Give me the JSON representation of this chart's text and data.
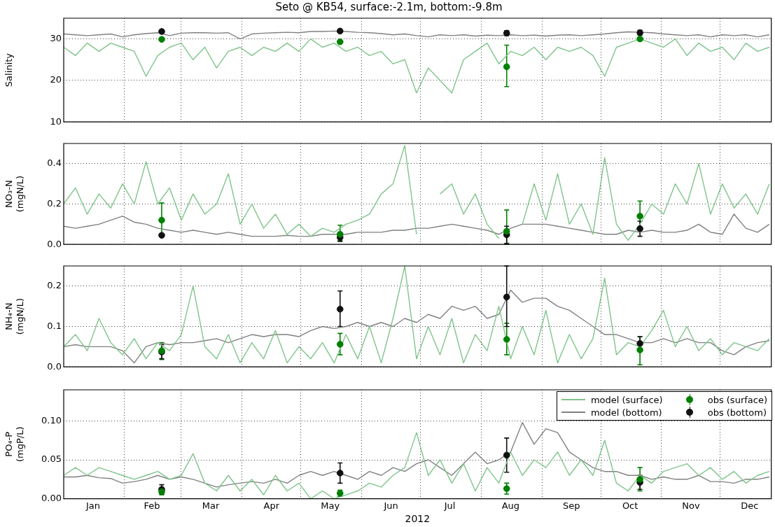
{
  "chart_data": [
    {
      "type": "line",
      "title": "Seto @ KB54, surface:-2.1m, bottom:-9.8m",
      "ylabel": "Salinity",
      "tick_labels": "y",
      "grid": true,
      "line_style": "solid",
      "xlim": [
        "2012-01-01",
        "2012-12-27"
      ],
      "ylim": [
        10,
        35
      ],
      "yticks": [
        10,
        20,
        30
      ],
      "xticks": [
        {
          "value": "2012-02-01",
          "label": null
        },
        {
          "value": "2012-03-01",
          "label": null
        },
        {
          "value": "2012-04-01",
          "label": null
        },
        {
          "value": "2012-05-01",
          "label": null
        },
        {
          "value": "2012-06-01",
          "label": null
        },
        {
          "value": "2012-07-01",
          "label": null
        },
        {
          "value": "2012-08-01",
          "label": null
        },
        {
          "value": "2012-09-01",
          "label": null
        },
        {
          "value": "2012-10-01",
          "label": null
        },
        {
          "value": "2012-11-01",
          "label": null
        },
        {
          "value": "2012-12-01",
          "label": null
        }
      ],
      "x": [
        "2012-01-01",
        "2012-01-07",
        "2012-01-13",
        "2012-01-19",
        "2012-01-25",
        "2012-01-31",
        "2012-02-06",
        "2012-02-12",
        "2012-02-18",
        "2012-02-24",
        "2012-03-01",
        "2012-03-07",
        "2012-03-13",
        "2012-03-19",
        "2012-03-25",
        "2012-03-31",
        "2012-04-06",
        "2012-04-12",
        "2012-04-18",
        "2012-04-24",
        "2012-04-30",
        "2012-05-06",
        "2012-05-12",
        "2012-05-18",
        "2012-05-24",
        "2012-05-30",
        "2012-06-05",
        "2012-06-11",
        "2012-06-17",
        "2012-06-23",
        "2012-06-29",
        "2012-07-05",
        "2012-07-11",
        "2012-07-17",
        "2012-07-23",
        "2012-07-29",
        "2012-08-04",
        "2012-08-10",
        "2012-08-16",
        "2012-08-22",
        "2012-08-28",
        "2012-09-03",
        "2012-09-09",
        "2012-09-15",
        "2012-09-21",
        "2012-09-27",
        "2012-10-03",
        "2012-10-09",
        "2012-10-15",
        "2012-10-21",
        "2012-10-27",
        "2012-11-02",
        "2012-11-08",
        "2012-11-14",
        "2012-11-20",
        "2012-11-26",
        "2012-12-02",
        "2012-12-08",
        "2012-12-14",
        "2012-12-20",
        "2012-12-26"
      ],
      "series": [
        {
          "color": "#7fc48a",
          "values": [
            28,
            26,
            29,
            27,
            29,
            28,
            27,
            21,
            26,
            28,
            29,
            25,
            28,
            23,
            27,
            28,
            26,
            28,
            27,
            29,
            27,
            30,
            28,
            29,
            27,
            28,
            26,
            27,
            24,
            25,
            17,
            23,
            20,
            17,
            25,
            27,
            29,
            24,
            27,
            26,
            28,
            25,
            28,
            27,
            28,
            26,
            21,
            28,
            29,
            30,
            29,
            28,
            30,
            26,
            29,
            27,
            28,
            25,
            29,
            27,
            28
          ]
        },
        {
          "color": "#808080",
          "values": [
            31.2,
            31,
            30.8,
            31,
            31.2,
            30.5,
            31,
            31.3,
            31.5,
            30.8,
            31.4,
            31.5,
            31.5,
            31.4,
            31.5,
            30,
            31.2,
            31.4,
            31.5,
            31.6,
            31.5,
            31.8,
            31.8,
            31.9,
            31.8,
            31.6,
            31.5,
            31.3,
            31,
            31.2,
            30.8,
            30.5,
            31,
            30.8,
            31,
            30.7,
            30.9,
            30.8,
            31,
            30.8,
            30.9,
            30.7,
            30.9,
            31,
            30.8,
            31,
            31.2,
            31.5,
            31.7,
            31.6,
            31.5,
            31.2,
            31,
            30.8,
            31,
            30.5,
            31,
            30.8,
            31,
            30.5,
            31
          ]
        },
        {
          "type": "scatter",
          "marker": "circle",
          "color": "#008000",
          "x": [
            "2012-02-20",
            "2012-05-21",
            "2012-08-14",
            "2012-10-21"
          ],
          "values": [
            29.9,
            29.3,
            23.3,
            30
          ],
          "errors": [
            null,
            null,
            [
              18.5,
              28.5
            ],
            null
          ]
        },
        {
          "type": "scatter",
          "marker": "circle",
          "color": "#111111",
          "x": [
            "2012-02-20",
            "2012-05-21",
            "2012-08-14",
            "2012-10-21"
          ],
          "values": [
            31.8,
            31.9,
            31.4,
            31.5
          ],
          "errors": [
            null,
            null,
            [
              30.8,
              32
            ],
            [
              30.9,
              32.1
            ]
          ]
        }
      ]
    },
    {
      "type": "line",
      "ylabel": "NO₃-N\n(mgN/L)",
      "tick_labels": "y",
      "grid": true,
      "line_style": "solid",
      "xlim": [
        "2012-01-01",
        "2012-12-27"
      ],
      "ylim": [
        0,
        0.5
      ],
      "yticks": [
        {
          "value": 0,
          "label": "0.0"
        },
        {
          "value": 0.2,
          "label": "0.2"
        },
        {
          "value": 0.4,
          "label": "0.4"
        }
      ],
      "xticks": [
        {
          "value": "2012-02-01",
          "label": null
        },
        {
          "value": "2012-03-01",
          "label": null
        },
        {
          "value": "2012-04-01",
          "label": null
        },
        {
          "value": "2012-05-01",
          "label": null
        },
        {
          "value": "2012-06-01",
          "label": null
        },
        {
          "value": "2012-07-01",
          "label": null
        },
        {
          "value": "2012-08-01",
          "label": null
        },
        {
          "value": "2012-09-01",
          "label": null
        },
        {
          "value": "2012-10-01",
          "label": null
        },
        {
          "value": "2012-11-01",
          "label": null
        },
        {
          "value": "2012-12-01",
          "label": null
        }
      ],
      "x": [
        "2012-01-01",
        "2012-01-07",
        "2012-01-13",
        "2012-01-19",
        "2012-01-25",
        "2012-01-31",
        "2012-02-06",
        "2012-02-12",
        "2012-02-18",
        "2012-02-24",
        "2012-03-01",
        "2012-03-07",
        "2012-03-13",
        "2012-03-19",
        "2012-03-25",
        "2012-03-31",
        "2012-04-06",
        "2012-04-12",
        "2012-04-18",
        "2012-04-24",
        "2012-04-30",
        "2012-05-06",
        "2012-05-12",
        "2012-05-18",
        "2012-05-24",
        "2012-05-30",
        "2012-06-05",
        "2012-06-11",
        "2012-06-17",
        "2012-06-23",
        "2012-06-29",
        "2012-07-05",
        "2012-07-11",
        "2012-07-17",
        "2012-07-23",
        "2012-07-29",
        "2012-08-04",
        "2012-08-10",
        "2012-08-16",
        "2012-08-22",
        "2012-08-28",
        "2012-09-03",
        "2012-09-09",
        "2012-09-15",
        "2012-09-21",
        "2012-09-27",
        "2012-10-03",
        "2012-10-09",
        "2012-10-15",
        "2012-10-21",
        "2012-10-27",
        "2012-11-02",
        "2012-11-08",
        "2012-11-14",
        "2012-11-20",
        "2012-11-26",
        "2012-12-02",
        "2012-12-08",
        "2012-12-14",
        "2012-12-20",
        "2012-12-26"
      ],
      "series": [
        {
          "color": "#7fc48a",
          "values": [
            0.2,
            0.28,
            0.15,
            0.25,
            0.18,
            0.3,
            0.2,
            0.41,
            0.2,
            0.28,
            0.12,
            0.25,
            0.15,
            0.2,
            0.35,
            0.1,
            0.2,
            0.08,
            0.15,
            0.05,
            0.1,
            0.04,
            0.08,
            0.06,
            0.1,
            0.12,
            0.15,
            0.25,
            0.3,
            0.49,
            0.05,
            null,
            0.25,
            0.3,
            0.15,
            0.25,
            0.1,
            0.03,
            null,
            0.1,
            0.3,
            0.12,
            0.35,
            0.1,
            0.2,
            0.05,
            0.43,
            0.1,
            0.02,
            0.1,
            0.2,
            0.15,
            0.3,
            0.2,
            0.4,
            0.15,
            0.3,
            0.18,
            0.25,
            0.15,
            0.3
          ]
        },
        {
          "color": "#808080",
          "values": [
            0.09,
            0.08,
            0.09,
            0.1,
            0.12,
            0.14,
            0.11,
            0.1,
            0.08,
            0.07,
            0.06,
            0.07,
            0.06,
            0.05,
            0.06,
            0.05,
            0.04,
            0.04,
            0.04,
            0.045,
            0.04,
            0.04,
            0.05,
            0.05,
            0.05,
            0.06,
            0.06,
            0.06,
            0.07,
            0.07,
            0.08,
            0.08,
            0.09,
            0.1,
            0.09,
            0.08,
            0.07,
            0.05,
            0.08,
            0.1,
            0.1,
            0.1,
            0.09,
            0.08,
            0.07,
            0.06,
            0.05,
            0.05,
            0.07,
            0.06,
            0.07,
            0.06,
            0.06,
            0.07,
            0.1,
            0.06,
            0.05,
            0.15,
            0.08,
            0.06,
            0.1
          ]
        },
        {
          "type": "scatter",
          "marker": "circle",
          "color": "#008000",
          "x": [
            "2012-02-20",
            "2012-05-21",
            "2012-08-14",
            "2012-10-21"
          ],
          "values": [
            0.12,
            0.05,
            0.065,
            0.14
          ],
          "errors": [
            [
              0.04,
              0.205
            ],
            [
              0.02,
              0.095
            ],
            [
              0,
              0.17
            ],
            [
              0.07,
              0.215
            ]
          ]
        },
        {
          "type": "scatter",
          "marker": "circle",
          "color": "#111111",
          "x": [
            "2012-02-20",
            "2012-05-21",
            "2012-08-14",
            "2012-10-21"
          ],
          "values": [
            0.045,
            0.035,
            0.048,
            0.078
          ],
          "errors": [
            null,
            [
              0.015,
              0.06
            ],
            [
              0.005,
              0.09
            ],
            [
              0.04,
              0.115
            ]
          ]
        }
      ]
    },
    {
      "type": "line",
      "ylabel": "NH₄-N\n(mgN/L)",
      "tick_labels": "y",
      "grid": true,
      "line_style": "solid",
      "xlim": [
        "2012-01-01",
        "2012-12-27"
      ],
      "ylim": [
        0,
        0.25
      ],
      "yticks": [
        {
          "value": 0,
          "label": "0.0"
        },
        {
          "value": 0.1,
          "label": "0.1"
        },
        {
          "value": 0.2,
          "label": "0.2"
        }
      ],
      "xticks": [
        {
          "value": "2012-02-01",
          "label": null
        },
        {
          "value": "2012-03-01",
          "label": null
        },
        {
          "value": "2012-04-01",
          "label": null
        },
        {
          "value": "2012-05-01",
          "label": null
        },
        {
          "value": "2012-06-01",
          "label": null
        },
        {
          "value": "2012-07-01",
          "label": null
        },
        {
          "value": "2012-08-01",
          "label": null
        },
        {
          "value": "2012-09-01",
          "label": null
        },
        {
          "value": "2012-10-01",
          "label": null
        },
        {
          "value": "2012-11-01",
          "label": null
        },
        {
          "value": "2012-12-01",
          "label": null
        }
      ],
      "x": [
        "2012-01-01",
        "2012-01-07",
        "2012-01-13",
        "2012-01-19",
        "2012-01-25",
        "2012-01-31",
        "2012-02-06",
        "2012-02-12",
        "2012-02-18",
        "2012-02-24",
        "2012-03-01",
        "2012-03-07",
        "2012-03-13",
        "2012-03-19",
        "2012-03-25",
        "2012-03-31",
        "2012-04-06",
        "2012-04-12",
        "2012-04-18",
        "2012-04-24",
        "2012-04-30",
        "2012-05-06",
        "2012-05-12",
        "2012-05-18",
        "2012-05-24",
        "2012-05-30",
        "2012-06-05",
        "2012-06-11",
        "2012-06-17",
        "2012-06-23",
        "2012-06-29",
        "2012-07-05",
        "2012-07-11",
        "2012-07-17",
        "2012-07-23",
        "2012-07-29",
        "2012-08-04",
        "2012-08-10",
        "2012-08-16",
        "2012-08-22",
        "2012-08-28",
        "2012-09-03",
        "2012-09-09",
        "2012-09-15",
        "2012-09-21",
        "2012-09-27",
        "2012-10-03",
        "2012-10-09",
        "2012-10-15",
        "2012-10-21",
        "2012-10-27",
        "2012-11-02",
        "2012-11-08",
        "2012-11-14",
        "2012-11-20",
        "2012-11-26",
        "2012-12-02",
        "2012-12-08",
        "2012-12-14",
        "2012-12-20",
        "2012-12-26"
      ],
      "series": [
        {
          "color": "#7fc48a",
          "values": [
            0.05,
            0.08,
            0.04,
            0.12,
            0.06,
            0.03,
            0.07,
            0.02,
            0.06,
            0.04,
            0.08,
            0.2,
            0.05,
            0.02,
            0.08,
            0.01,
            0.06,
            0.02,
            0.09,
            0.01,
            0.05,
            0.02,
            0.06,
            0.01,
            0.08,
            0.02,
            0.1,
            0.01,
            0.12,
            0.25,
            0.02,
            0.1,
            0.03,
            0.12,
            0.01,
            0.08,
            0.04,
            0.15,
            0.02,
            0.1,
            0.03,
            0.14,
            0.01,
            0.08,
            0.02,
            0.07,
            0.22,
            0.03,
            0.06,
            0.05,
            0.09,
            0.14,
            0.05,
            0.1,
            0.04,
            0.07,
            0.03,
            0.06,
            0.05,
            0.04,
            0.07
          ]
        },
        {
          "color": "#808080",
          "values": [
            0.05,
            0.055,
            0.05,
            0.05,
            0.05,
            0.04,
            0.01,
            0.05,
            0.06,
            0.055,
            0.06,
            0.06,
            0.065,
            0.07,
            0.06,
            0.07,
            0.08,
            0.075,
            0.08,
            0.08,
            0.075,
            0.09,
            0.1,
            0.095,
            0.1,
            0.11,
            0.1,
            0.11,
            0.1,
            0.12,
            0.11,
            0.13,
            0.12,
            0.15,
            0.14,
            0.15,
            0.12,
            0.13,
            0.19,
            0.16,
            0.17,
            0.17,
            0.15,
            0.14,
            0.12,
            0.1,
            0.08,
            0.08,
            0.07,
            0.06,
            0.06,
            0.07,
            0.06,
            0.07,
            0.06,
            0.06,
            0.04,
            0.03,
            0.05,
            0.06,
            0.065
          ]
        },
        {
          "type": "scatter",
          "marker": "circle",
          "color": "#008000",
          "x": [
            "2012-02-20",
            "2012-05-21",
            "2012-08-14",
            "2012-10-21"
          ],
          "values": [
            0.04,
            0.056,
            0.068,
            0.042
          ],
          "errors": [
            [
              0.018,
              0.06
            ],
            [
              0.03,
              0.083
            ],
            [
              0.03,
              0.108
            ],
            [
              0.005,
              0.075
            ]
          ]
        },
        {
          "type": "scatter",
          "marker": "circle",
          "color": "#111111",
          "x": [
            "2012-02-20",
            "2012-05-21",
            "2012-08-14",
            "2012-10-21"
          ],
          "values": [
            0.037,
            0.143,
            0.173,
            0.058
          ],
          "errors": [
            [
              0.02,
              0.055
            ],
            [
              0.1,
              0.188
            ],
            [
              0.1,
              0.25
            ],
            [
              0.04,
              0.075
            ]
          ]
        }
      ]
    },
    {
      "type": "line",
      "ylabel": "PO₄-P\n(mgP/L)",
      "xlabel": "2012",
      "legend": "top right",
      "grid": true,
      "line_style": "solid",
      "xlim": [
        "2012-01-01",
        "2012-12-27"
      ],
      "ylim": [
        0,
        0.14
      ],
      "yticks": [
        {
          "value": 0,
          "label": "0.00"
        },
        {
          "value": 0.05,
          "label": "0.05"
        },
        {
          "value": 0.1,
          "label": "0.10"
        }
      ],
      "xticks": [
        {
          "value": "2012-01-16",
          "label": "Jan"
        },
        {
          "value": "2012-02-01",
          "label": null
        },
        {
          "value": "2012-02-15",
          "label": "Feb"
        },
        {
          "value": "2012-03-01",
          "label": null
        },
        {
          "value": "2012-03-16",
          "label": "Mar"
        },
        {
          "value": "2012-04-01",
          "label": null
        },
        {
          "value": "2012-04-16",
          "label": "Apr"
        },
        {
          "value": "2012-05-01",
          "label": null
        },
        {
          "value": "2012-05-16",
          "label": "May"
        },
        {
          "value": "2012-06-01",
          "label": null
        },
        {
          "value": "2012-06-16",
          "label": "Jun"
        },
        {
          "value": "2012-07-01",
          "label": null
        },
        {
          "value": "2012-07-16",
          "label": "Jul"
        },
        {
          "value": "2012-08-01",
          "label": null
        },
        {
          "value": "2012-08-16",
          "label": "Aug"
        },
        {
          "value": "2012-09-01",
          "label": null
        },
        {
          "value": "2012-09-16",
          "label": "Sep"
        },
        {
          "value": "2012-10-01",
          "label": null
        },
        {
          "value": "2012-10-16",
          "label": "Oct"
        },
        {
          "value": "2012-11-01",
          "label": null
        },
        {
          "value": "2012-11-16",
          "label": "Nov"
        },
        {
          "value": "2012-12-01",
          "label": null
        },
        {
          "value": "2012-12-16",
          "label": "Dec"
        }
      ],
      "x": [
        "2012-01-01",
        "2012-01-07",
        "2012-01-13",
        "2012-01-19",
        "2012-01-25",
        "2012-01-31",
        "2012-02-06",
        "2012-02-12",
        "2012-02-18",
        "2012-02-24",
        "2012-03-01",
        "2012-03-07",
        "2012-03-13",
        "2012-03-19",
        "2012-03-25",
        "2012-03-31",
        "2012-04-06",
        "2012-04-12",
        "2012-04-18",
        "2012-04-24",
        "2012-04-30",
        "2012-05-06",
        "2012-05-12",
        "2012-05-18",
        "2012-05-24",
        "2012-05-30",
        "2012-06-05",
        "2012-06-11",
        "2012-06-17",
        "2012-06-23",
        "2012-06-29",
        "2012-07-05",
        "2012-07-11",
        "2012-07-17",
        "2012-07-23",
        "2012-07-29",
        "2012-08-04",
        "2012-08-10",
        "2012-08-16",
        "2012-08-22",
        "2012-08-28",
        "2012-09-03",
        "2012-09-09",
        "2012-09-15",
        "2012-09-21",
        "2012-09-27",
        "2012-10-03",
        "2012-10-09",
        "2012-10-15",
        "2012-10-21",
        "2012-10-27",
        "2012-11-02",
        "2012-11-08",
        "2012-11-14",
        "2012-11-20",
        "2012-11-26",
        "2012-12-02",
        "2012-12-08",
        "2012-12-14",
        "2012-12-20",
        "2012-12-26"
      ],
      "series": [
        {
          "name": "model (surface)",
          "color": "#7fc48a",
          "values": [
            0.03,
            0.04,
            0.03,
            0.04,
            0.035,
            0.03,
            0.025,
            0.03,
            0.035,
            0.025,
            0.03,
            0.058,
            0.02,
            0.01,
            0.03,
            0.01,
            0.025,
            0.005,
            0.03,
            0.01,
            0.02,
            0,
            0.01,
            0,
            0.005,
            0.01,
            0.02,
            0.015,
            0.03,
            0.04,
            0.085,
            0.03,
            0.05,
            0.02,
            0.045,
            0.01,
            0.04,
            0.02,
            0.06,
            0.03,
            0.05,
            0.04,
            0.06,
            0.03,
            0.05,
            0.03,
            0.075,
            0.02,
            0.01,
            0.03,
            0.02,
            0.035,
            0.04,
            0.045,
            0.03,
            0.04,
            0.025,
            0.035,
            0.02,
            0.03,
            0.035
          ]
        },
        {
          "name": "model (bottom)",
          "color": "#808080",
          "values": [
            0.028,
            0.028,
            0.03,
            0.027,
            0.026,
            0.02,
            0.022,
            0.025,
            0.03,
            0.025,
            0.028,
            0.025,
            0.02,
            0.015,
            0.018,
            0.02,
            0.022,
            0.02,
            0.025,
            0.02,
            0.03,
            0.035,
            0.03,
            0.035,
            0.03,
            0.025,
            0.035,
            0.03,
            0.04,
            0.035,
            0.045,
            0.05,
            0.04,
            0.03,
            0.045,
            0.06,
            0.045,
            0.05,
            0.06,
            0.098,
            0.07,
            0.09,
            0.085,
            0.06,
            0.05,
            0.04,
            0.035,
            0.035,
            0.03,
            0.03,
            0.025,
            0.028,
            0.025,
            0.025,
            0.03,
            0.022,
            0.022,
            0.02,
            0.025,
            0.025,
            0.028
          ]
        },
        {
          "type": "scatter",
          "marker": "circle",
          "name": "obs (surface)",
          "color": "#008000",
          "x": [
            "2012-02-20",
            "2012-05-21",
            "2012-08-14",
            "2012-10-21"
          ],
          "values": [
            0.009,
            0.007,
            0.013,
            0.025
          ],
          "errors": [
            [
              0.005,
              0.013
            ],
            [
              0.003,
              0.011
            ],
            [
              0.006,
              0.02
            ],
            [
              0.01,
              0.04
            ]
          ]
        },
        {
          "type": "scatter",
          "marker": "circle",
          "name": "obs (bottom)",
          "color": "#111111",
          "x": [
            "2012-02-20",
            "2012-05-21",
            "2012-08-14",
            "2012-10-21"
          ],
          "values": [
            0.012,
            0.033,
            0.056,
            0.021
          ],
          "errors": [
            [
              0.006,
              0.018
            ],
            [
              0.02,
              0.046
            ],
            [
              0.034,
              0.078
            ],
            [
              0.012,
              0.03
            ]
          ]
        }
      ]
    }
  ]
}
